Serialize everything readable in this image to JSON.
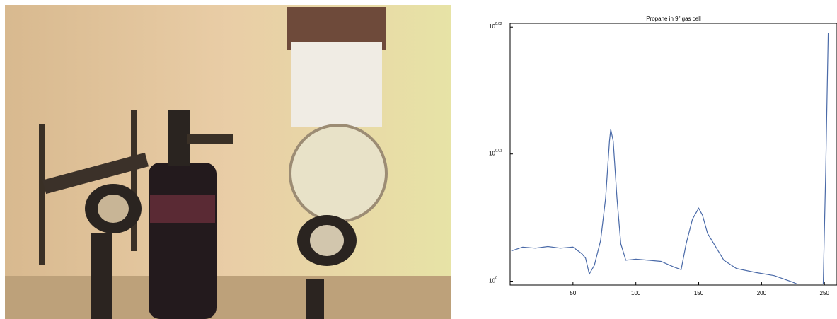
{
  "chart_data": {
    "type": "line",
    "title": "Propane in 9\" gas cell",
    "log_scale_y": true,
    "grid": false,
    "xlim": [
      0,
      260
    ],
    "xticks": [
      50,
      100,
      150,
      200,
      250
    ],
    "ylim": [
      0.9993,
      1.0478
    ],
    "yticks": [
      {
        "value": 1,
        "label": "10",
        "exponent": "0"
      },
      {
        "value": 1.0233,
        "label": "10",
        "exponent": "0.01"
      },
      {
        "value": 1.0471,
        "label": "10",
        "exponent": "0.02"
      }
    ],
    "series": [
      {
        "color": "#4a6aa8",
        "x": [
          1,
          10,
          20,
          30,
          40,
          50,
          57,
          60,
          63,
          67,
          72,
          76,
          79,
          80,
          82,
          85,
          88,
          92,
          100,
          110,
          120,
          130,
          136,
          140,
          145,
          150,
          153,
          157,
          162,
          170,
          180,
          195,
          210,
          225,
          228,
          238,
          249,
          251,
          253
        ],
        "values": [
          1.0055,
          1.0062,
          1.006,
          1.0063,
          1.006,
          1.0062,
          1.005,
          1.0042,
          1.0013,
          1.0029,
          1.0074,
          1.0152,
          1.0257,
          1.0279,
          1.0257,
          1.0152,
          1.0068,
          1.0038,
          1.004,
          1.0038,
          1.0036,
          1.0026,
          1.0021,
          1.0068,
          1.0113,
          1.0133,
          1.012,
          1.0087,
          1.0068,
          1.0038,
          1.0023,
          1.0016,
          1.001,
          0.9998,
          0.9995,
          null,
          0.9995,
          1.02,
          1.046
        ]
      }
    ]
  }
}
